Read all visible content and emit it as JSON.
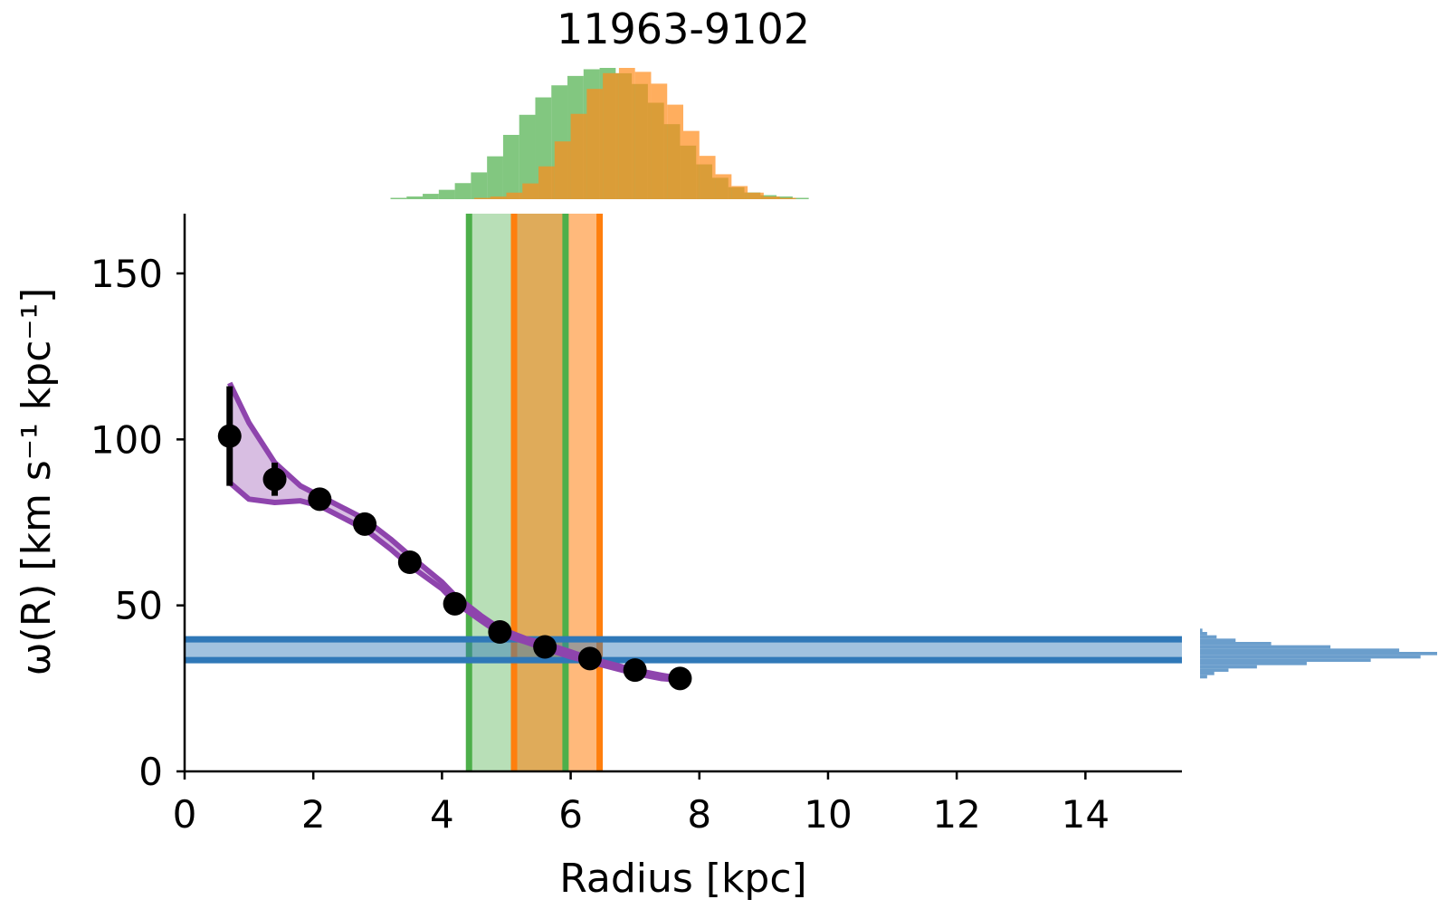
{
  "chart_data": {
    "type": "scatter",
    "title": "11963-9102",
    "xlabel": "Radius [kpc]",
    "ylabel": "ω(R) [km s⁻¹ kpc⁻¹]",
    "xlim": [
      0,
      15.5
    ],
    "ylim": [
      0,
      168
    ],
    "x_ticks": [
      0,
      2,
      4,
      6,
      8,
      10,
      12,
      14
    ],
    "y_ticks": [
      0,
      50,
      100,
      150
    ],
    "grid": false,
    "points": {
      "x": [
        0.7,
        1.4,
        2.1,
        2.8,
        3.5,
        4.2,
        4.9,
        5.6,
        6.3,
        7.0,
        7.7
      ],
      "y": [
        101,
        88,
        82,
        74.5,
        63,
        50.5,
        42,
        37.5,
        34,
        30.5,
        28
      ],
      "yerr": [
        15,
        5,
        0,
        0,
        0,
        0,
        0,
        0,
        0,
        0,
        0
      ],
      "color": "#000000"
    },
    "model_band": {
      "color": "#8e44ad",
      "x": [
        0.7,
        1.0,
        1.4,
        1.8,
        2.1,
        2.5,
        2.8,
        3.2,
        3.5,
        4.0,
        4.2,
        4.6,
        4.9,
        5.3,
        5.6,
        6.0,
        6.3,
        6.7,
        7.0,
        7.4,
        7.7
      ],
      "upper": [
        117,
        105,
        93,
        86,
        83,
        79,
        76,
        70,
        65,
        57,
        53,
        47,
        43,
        40,
        38.5,
        36,
        34,
        32,
        30.5,
        29,
        28
      ],
      "lower": [
        87,
        82,
        81,
        81.5,
        80,
        76,
        73,
        67,
        62,
        55,
        51,
        45.5,
        41.5,
        39,
        37,
        34.5,
        33,
        31,
        29.5,
        28,
        27.5
      ]
    },
    "vertical_bands": [
      {
        "color": "#4daf4a",
        "x_lo": 4.42,
        "x_hi": 5.92
      },
      {
        "color": "#ff7f0e",
        "x_lo": 5.12,
        "x_hi": 6.45
      }
    ],
    "horizontal_band": {
      "color": "#2f78b8",
      "y_lo": 33.5,
      "y_hi": 39.8
    },
    "top_histograms": [
      {
        "color": "#4daf4a",
        "bin_edges_start": 3.2,
        "bin_width": 0.25,
        "counts": [
          1,
          2,
          4,
          7,
          12,
          20,
          32,
          48,
          63,
          76,
          85,
          92,
          97,
          98,
          94,
          86,
          72,
          56,
          40,
          26,
          16,
          9,
          5,
          3,
          2,
          1
        ]
      },
      {
        "color": "#ff8c1a",
        "bin_edges_start": 4.5,
        "bin_width": 0.25,
        "counts": [
          1,
          2,
          5,
          12,
          25,
          44,
          65,
          84,
          96,
          100,
          97,
          88,
          72,
          52,
          33,
          19,
          10,
          5,
          2,
          1
        ]
      }
    ],
    "right_histogram": {
      "color": "#5b93c7",
      "bin_edges_start": 28,
      "bin_width": 1,
      "counts": [
        3,
        6,
        12,
        24,
        45,
        72,
        93,
        100,
        84,
        55,
        30,
        15,
        7,
        3,
        1
      ]
    }
  }
}
